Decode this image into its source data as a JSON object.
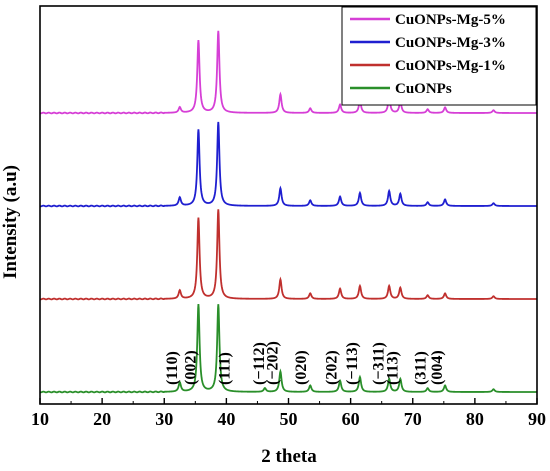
{
  "chart_data": {
    "type": "line",
    "xlabel": "2 theta",
    "ylabel": "Intensity (a.u)",
    "xlim": [
      10,
      90
    ],
    "xticks": [
      10,
      20,
      30,
      40,
      50,
      60,
      70,
      80,
      90
    ],
    "legend_position": "top-right",
    "grid": false,
    "series": [
      {
        "name": "CuONPs-Mg-5%",
        "color": "#d63fd6",
        "offset": 3,
        "peaks": [
          [
            32.5,
            0.06
          ],
          [
            35.5,
            0.78
          ],
          [
            38.7,
            0.88
          ],
          [
            48.7,
            0.2
          ],
          [
            53.5,
            0.05
          ],
          [
            58.3,
            0.09
          ],
          [
            61.5,
            0.13
          ],
          [
            66.2,
            0.16
          ],
          [
            68.0,
            0.12
          ],
          [
            72.4,
            0.04
          ],
          [
            75.2,
            0.06
          ],
          [
            83.0,
            0.03
          ]
        ]
      },
      {
        "name": "CuONPs-Mg-3%",
        "color": "#1f1fd0",
        "offset": 2,
        "peaks": [
          [
            32.5,
            0.09
          ],
          [
            35.5,
            0.82
          ],
          [
            38.7,
            0.9
          ],
          [
            48.7,
            0.19
          ],
          [
            53.5,
            0.06
          ],
          [
            58.3,
            0.1
          ],
          [
            61.5,
            0.14
          ],
          [
            66.2,
            0.16
          ],
          [
            68.0,
            0.13
          ],
          [
            72.4,
            0.04
          ],
          [
            75.2,
            0.07
          ],
          [
            83.0,
            0.03
          ]
        ]
      },
      {
        "name": "CuONPs-Mg-1%",
        "color": "#c0302e",
        "offset": 1,
        "peaks": [
          [
            32.5,
            0.09
          ],
          [
            35.5,
            0.87
          ],
          [
            38.7,
            0.96
          ],
          [
            48.7,
            0.21
          ],
          [
            53.5,
            0.06
          ],
          [
            58.3,
            0.11
          ],
          [
            61.5,
            0.14
          ],
          [
            66.2,
            0.14
          ],
          [
            68.0,
            0.12
          ],
          [
            72.4,
            0.04
          ],
          [
            75.2,
            0.06
          ],
          [
            83.0,
            0.03
          ]
        ]
      },
      {
        "name": "CuONPs",
        "color": "#2a8f2a",
        "offset": 0,
        "peaks": [
          [
            32.5,
            0.1
          ],
          [
            35.5,
            0.94
          ],
          [
            38.7,
            0.94
          ],
          [
            46.2,
            0.04
          ],
          [
            48.7,
            0.22
          ],
          [
            53.5,
            0.07
          ],
          [
            58.3,
            0.12
          ],
          [
            61.5,
            0.16
          ],
          [
            66.2,
            0.14
          ],
          [
            68.0,
            0.14
          ],
          [
            72.4,
            0.04
          ],
          [
            75.2,
            0.07
          ],
          [
            83.0,
            0.03
          ]
        ]
      }
    ],
    "annotations": [
      {
        "text": "(110)",
        "x": 32.5
      },
      {
        "text": "(002)",
        "x": 35.5
      },
      {
        "text": "(111)",
        "x": 41.0
      },
      {
        "text": "(−112)",
        "x": 46.5
      },
      {
        "text": "(−202)",
        "x": 48.7
      },
      {
        "text": "(020)",
        "x": 53.3
      },
      {
        "text": "(202)",
        "x": 58.2
      },
      {
        "text": "(−113)",
        "x": 61.5
      },
      {
        "text": "(−311)",
        "x": 65.8
      },
      {
        "text": "(113)",
        "x": 68.0
      },
      {
        "text": "(311)",
        "x": 72.5
      },
      {
        "text": "(004)",
        "x": 75.2
      }
    ]
  }
}
